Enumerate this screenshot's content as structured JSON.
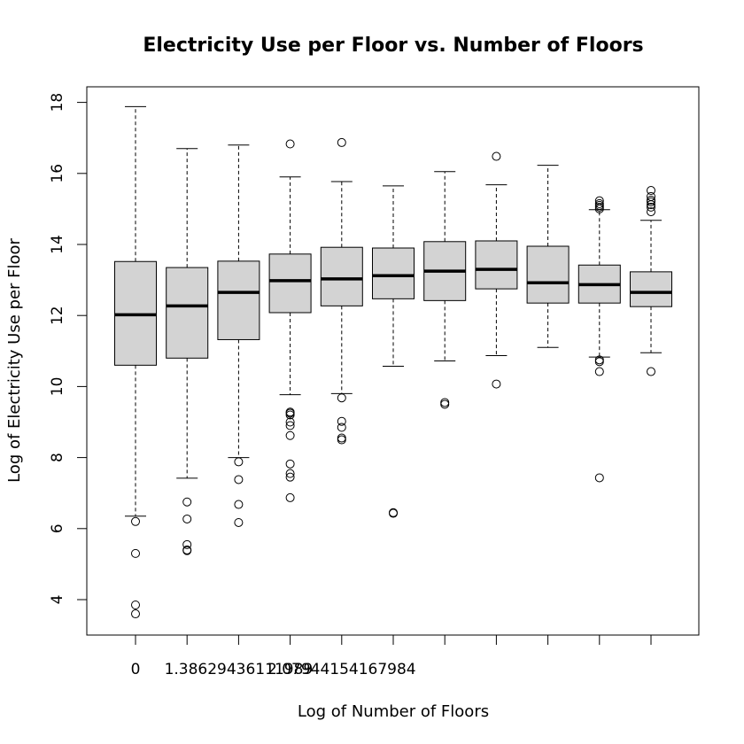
{
  "chart_data": {
    "type": "boxplot",
    "title": "Electricity Use per Floor vs. Number of Floors",
    "xlabel": "Log of Number of Floors",
    "ylabel": "Log of Electricity Use per Floor",
    "ylim": [
      3,
      18.5
    ],
    "yticks": [
      4,
      6,
      8,
      10,
      12,
      14,
      16,
      18
    ],
    "xtick_labels": [
      "0",
      "",
      "1.38629436111989",
      "",
      "2.07944154167984",
      "",
      "",
      "",
      "",
      "",
      ""
    ],
    "boxes": [
      {
        "whisker_low": 6.35,
        "q1": 10.6,
        "median": 12.02,
        "q3": 13.52,
        "whisker_high": 17.88,
        "outliers": [
          6.2,
          5.3,
          3.85,
          3.6
        ]
      },
      {
        "whisker_low": 7.42,
        "q1": 10.8,
        "median": 12.27,
        "q3": 13.35,
        "whisker_high": 16.7,
        "outliers": [
          6.75,
          6.27,
          5.55,
          5.38,
          5.4
        ]
      },
      {
        "whisker_low": 8.0,
        "q1": 11.32,
        "median": 12.65,
        "q3": 13.53,
        "whisker_high": 16.8,
        "outliers": [
          7.88,
          7.38,
          6.68,
          6.17
        ]
      },
      {
        "whisker_low": 9.77,
        "q1": 12.08,
        "median": 12.98,
        "q3": 13.73,
        "whisker_high": 15.9,
        "outliers": [
          16.83,
          9.28,
          9.25,
          9.2,
          9.0,
          8.9,
          8.62,
          7.82,
          7.55,
          7.45,
          6.87
        ]
      },
      {
        "whisker_low": 9.8,
        "q1": 12.27,
        "median": 13.03,
        "q3": 13.92,
        "whisker_high": 15.77,
        "outliers": [
          16.87,
          9.68,
          9.02,
          8.85,
          8.55,
          8.5
        ]
      },
      {
        "whisker_low": 10.57,
        "q1": 12.47,
        "median": 13.12,
        "q3": 13.9,
        "whisker_high": 15.65,
        "outliers": [
          6.45,
          6.43
        ]
      },
      {
        "whisker_low": 10.72,
        "q1": 12.42,
        "median": 13.25,
        "q3": 14.08,
        "whisker_high": 16.05,
        "outliers": [
          9.55,
          9.5
        ]
      },
      {
        "whisker_low": 10.87,
        "q1": 12.75,
        "median": 13.3,
        "q3": 14.1,
        "whisker_high": 15.68,
        "outliers": [
          16.48,
          10.07
        ]
      },
      {
        "whisker_low": 11.1,
        "q1": 12.35,
        "median": 12.92,
        "q3": 13.95,
        "whisker_high": 16.23,
        "outliers": []
      },
      {
        "whisker_low": 10.83,
        "q1": 12.35,
        "median": 12.87,
        "q3": 13.42,
        "whisker_high": 14.98,
        "outliers": [
          15.23,
          15.15,
          15.1,
          15.05,
          15.0,
          10.75,
          10.7,
          10.42,
          7.43
        ]
      },
      {
        "whisker_low": 10.95,
        "q1": 12.25,
        "median": 12.65,
        "q3": 13.23,
        "whisker_high": 14.68,
        "outliers": [
          15.52,
          15.35,
          15.25,
          15.2,
          15.12,
          15.05,
          14.92,
          10.42
        ]
      }
    ],
    "colors": {
      "box_fill": "#d3d3d3",
      "stroke": "#000000",
      "background": "#ffffff"
    }
  }
}
